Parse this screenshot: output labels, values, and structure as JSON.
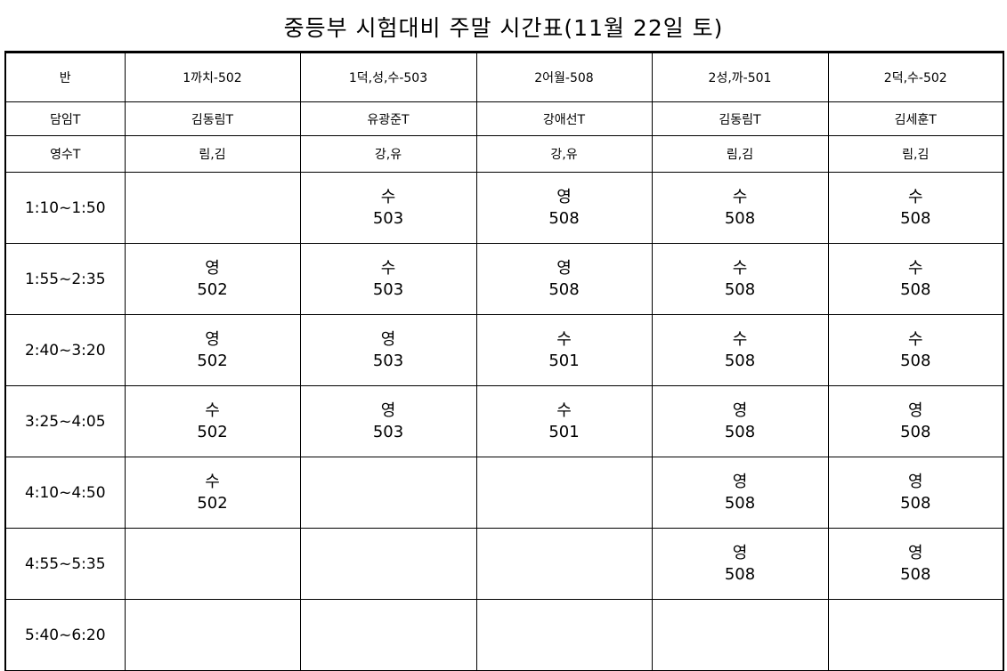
{
  "title": "중등부 시험대비 주말 시간표(11월 22일 토)",
  "header": {
    "label": "반",
    "classes": [
      "1까치-502",
      "1덕,성,수-503",
      "2어월-508",
      "2성,까-501",
      "2덕,수-502"
    ]
  },
  "homeroom": {
    "label": "담임T",
    "values": [
      "김동림T",
      "유광준T",
      "강애선T",
      "김동림T",
      "김세훈T"
    ]
  },
  "english_math": {
    "label": "영수T",
    "values": [
      "림,김",
      "강,유",
      "강,유",
      "림,김",
      "림,김"
    ]
  },
  "rows": [
    {
      "time": "1:10~1:50",
      "cells": [
        null,
        {
          "subject": "수",
          "room": "503"
        },
        {
          "subject": "영",
          "room": "508"
        },
        {
          "subject": "수",
          "room": "508"
        },
        {
          "subject": "수",
          "room": "508"
        }
      ]
    },
    {
      "time": "1:55~2:35",
      "cells": [
        {
          "subject": "영",
          "room": "502"
        },
        {
          "subject": "수",
          "room": "503"
        },
        {
          "subject": "영",
          "room": "508"
        },
        {
          "subject": "수",
          "room": "508"
        },
        {
          "subject": "수",
          "room": "508"
        }
      ]
    },
    {
      "time": "2:40~3:20",
      "cells": [
        {
          "subject": "영",
          "room": "502"
        },
        {
          "subject": "영",
          "room": "503"
        },
        {
          "subject": "수",
          "room": "501"
        },
        {
          "subject": "수",
          "room": "508"
        },
        {
          "subject": "수",
          "room": "508"
        }
      ]
    },
    {
      "time": "3:25~4:05",
      "cells": [
        {
          "subject": "수",
          "room": "502"
        },
        {
          "subject": "영",
          "room": "503"
        },
        {
          "subject": "수",
          "room": "501"
        },
        {
          "subject": "영",
          "room": "508"
        },
        {
          "subject": "영",
          "room": "508"
        }
      ]
    },
    {
      "time": "4:10~4:50",
      "cells": [
        {
          "subject": "수",
          "room": "502"
        },
        null,
        null,
        {
          "subject": "영",
          "room": "508"
        },
        {
          "subject": "영",
          "room": "508"
        }
      ]
    },
    {
      "time": "4:55~5:35",
      "cells": [
        null,
        null,
        null,
        {
          "subject": "영",
          "room": "508"
        },
        {
          "subject": "영",
          "room": "508"
        }
      ]
    },
    {
      "time": "5:40~6:20",
      "cells": [
        null,
        null,
        null,
        null,
        null
      ]
    }
  ]
}
